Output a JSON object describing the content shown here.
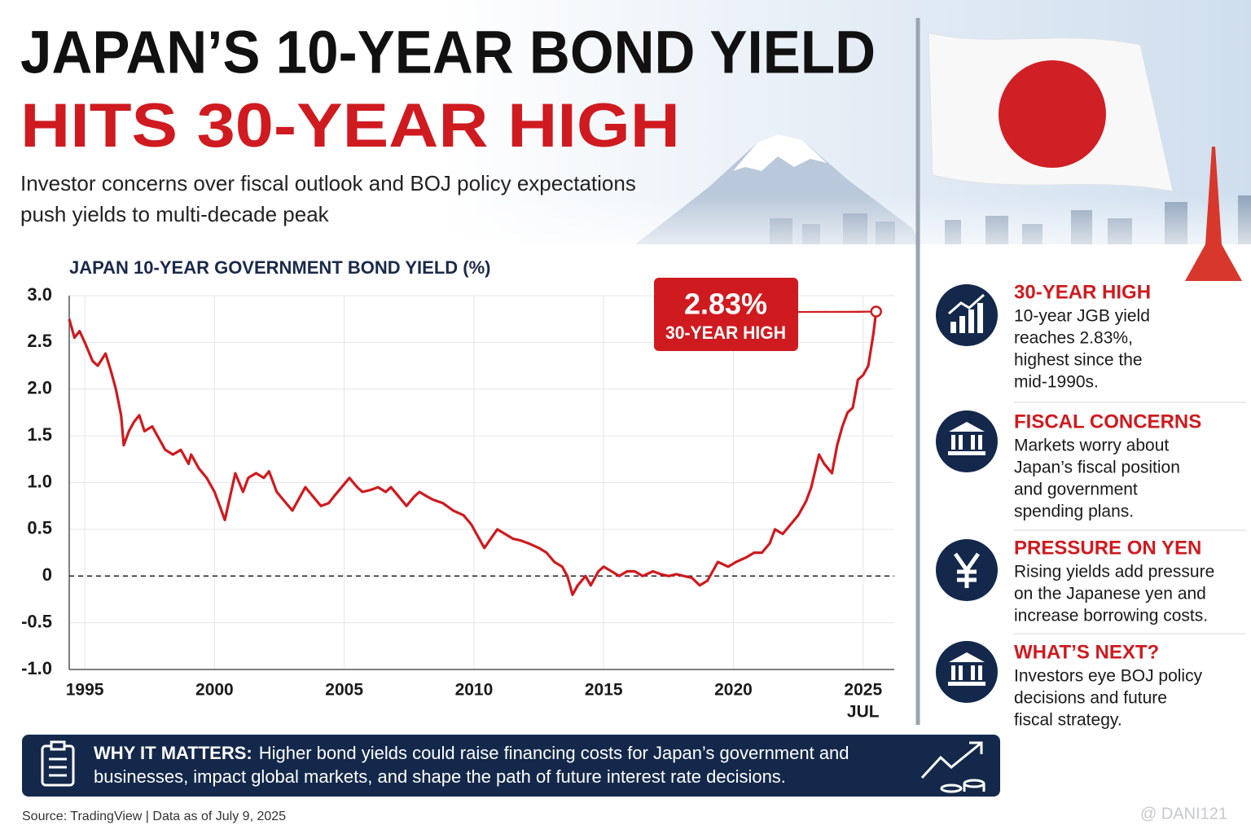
{
  "header": {
    "title_line1": "JAPAN’S 10-YEAR BOND YIELD",
    "title_line2": "HITS 30-YEAR HIGH",
    "subtitle_lines": [
      "Investor concerns over fiscal outlook and BOJ policy expectations",
      "push yields to multi-decade peak"
    ]
  },
  "chart_data": {
    "type": "line",
    "title": "JAPAN 10-YEAR GOVERNMENT BOND YIELD (%)",
    "color": "#cf1a1f",
    "grid": true,
    "zero_line": true,
    "x": [
      1994.4,
      1994.6,
      1994.8,
      1995.0,
      1995.3,
      1995.5,
      1995.8,
      1996.0,
      1996.2,
      1996.4,
      1996.5,
      1996.7,
      1996.9,
      1997.1,
      1997.3,
      1997.6,
      1997.9,
      1998.1,
      1998.4,
      1998.7,
      1999.0,
      1999.1,
      1999.4,
      1999.7,
      2000.0,
      2000.2,
      2000.4,
      2000.6,
      2000.8,
      2001.1,
      2001.3,
      2001.6,
      2001.9,
      2002.1,
      2002.4,
      2002.7,
      2003.0,
      2003.3,
      2003.5,
      2003.8,
      2004.1,
      2004.4,
      2004.6,
      2004.9,
      2005.2,
      2005.5,
      2005.7,
      2006.0,
      2006.3,
      2006.6,
      2006.8,
      2007.1,
      2007.4,
      2007.7,
      2007.9,
      2008.2,
      2008.4,
      2008.8,
      2009.2,
      2009.6,
      2009.9,
      2010.1,
      2010.4,
      2010.7,
      2010.9,
      2011.2,
      2011.5,
      2011.8,
      2012.1,
      2012.5,
      2012.8,
      2013.1,
      2013.4,
      2013.6,
      2013.8,
      2014.0,
      2014.3,
      2014.5,
      2014.8,
      2015.0,
      2015.3,
      2015.6,
      2015.9,
      2016.2,
      2016.5,
      2016.9,
      2017.2,
      2017.5,
      2017.8,
      2018.1,
      2018.4,
      2018.7,
      2019.0,
      2019.2,
      2019.4,
      2019.8,
      2020.1,
      2020.5,
      2020.8,
      2021.1,
      2021.4,
      2021.6,
      2021.9,
      2022.2,
      2022.5,
      2022.8,
      2023.0,
      2023.3,
      2023.5,
      2023.8,
      2024.0,
      2024.2,
      2024.4,
      2024.6,
      2024.8,
      2025.0,
      2025.2,
      2025.4,
      2025.5
    ],
    "values": [
      2.75,
      2.55,
      2.62,
      2.5,
      2.3,
      2.25,
      2.38,
      2.2,
      2.0,
      1.72,
      1.4,
      1.55,
      1.65,
      1.72,
      1.55,
      1.6,
      1.45,
      1.35,
      1.3,
      1.35,
      1.2,
      1.3,
      1.15,
      1.05,
      0.9,
      0.75,
      0.6,
      0.85,
      1.1,
      0.9,
      1.05,
      1.1,
      1.05,
      1.12,
      0.9,
      0.8,
      0.7,
      0.85,
      0.95,
      0.85,
      0.75,
      0.78,
      0.85,
      0.95,
      1.05,
      0.95,
      0.9,
      0.92,
      0.95,
      0.9,
      0.95,
      0.85,
      0.75,
      0.85,
      0.9,
      0.85,
      0.82,
      0.78,
      0.7,
      0.65,
      0.55,
      0.45,
      0.3,
      0.42,
      0.5,
      0.45,
      0.4,
      0.38,
      0.35,
      0.3,
      0.25,
      0.15,
      0.1,
      0.0,
      -0.2,
      -0.1,
      0.0,
      -0.1,
      0.05,
      0.1,
      0.05,
      0.0,
      0.05,
      0.05,
      0.0,
      0.05,
      0.02,
      0.0,
      0.02,
      0.0,
      -0.02,
      -0.1,
      -0.05,
      0.05,
      0.15,
      0.1,
      0.15,
      0.2,
      0.25,
      0.25,
      0.35,
      0.5,
      0.45,
      0.55,
      0.65,
      0.8,
      0.95,
      1.3,
      1.2,
      1.1,
      1.4,
      1.6,
      1.75,
      1.8,
      2.1,
      2.15,
      2.25,
      2.6,
      2.83
    ],
    "xlim": [
      1994.4,
      2026.2
    ],
    "xticks": [
      1995,
      2000,
      2005,
      2010,
      2015,
      2020,
      2025
    ],
    "x_end_label": "JUL",
    "ylim": [
      -1,
      3
    ],
    "yticks": [
      {
        "value": -1,
        "label": "-1.0"
      },
      -0.5,
      0,
      0.5,
      {
        "value": 1,
        "label": "1.0"
      },
      1.5,
      {
        "value": 2,
        "label": "2.0"
      },
      2.5,
      {
        "value": 3,
        "label": "3.0"
      }
    ],
    "annotation": {
      "label": "2.83%",
      "text": "30-YEAR HIGH"
    }
  },
  "sidebar": [
    {
      "title": "30-YEAR HIGH",
      "lines": [
        "10-year JGB yield",
        "reaches 2.83%,",
        "highest since the",
        "mid-1990s."
      ]
    },
    {
      "title": "FISCAL CONCERNS",
      "lines": [
        "Markets worry about",
        "Japan’s fiscal position",
        "and government",
        "spending plans."
      ]
    },
    {
      "title": "PRESSURE ON YEN",
      "lines": [
        "Rising yields add pressure",
        "on the Japanese yen and",
        "increase borrowing costs."
      ]
    },
    {
      "title": "WHAT’S NEXT?",
      "lines": [
        "Investors eye BOJ policy",
        "decisions and future",
        "fiscal strategy."
      ]
    }
  ],
  "footer": {
    "label": "WHY IT MATTERS:",
    "line1": "Higher bond yields could raise financing costs for Japan’s government and",
    "line2": "businesses, impact global markets, and shape the path of future interest rate decisions.",
    "source": "Source: TradingView | Data as of July 9, 2025",
    "watermark": "@ DANI121"
  }
}
